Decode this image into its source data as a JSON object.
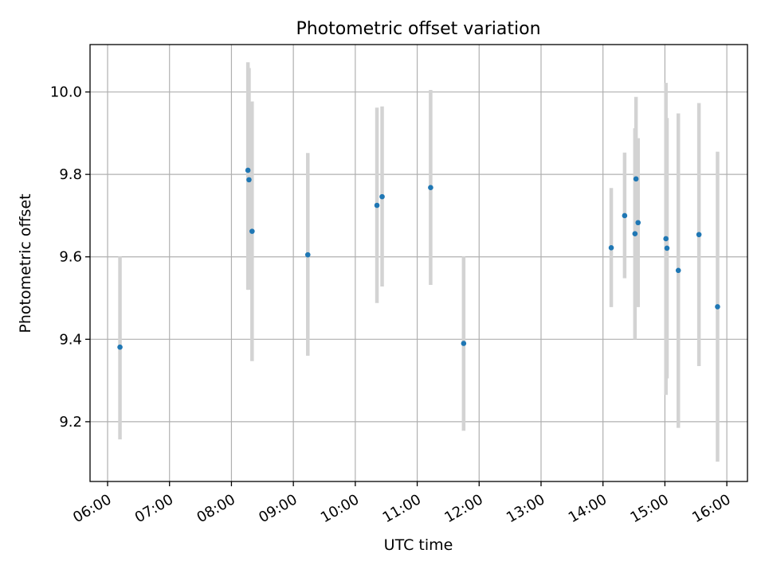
{
  "chart_data": {
    "type": "scatter",
    "title": "Photometric offset variation",
    "xlabel": "UTC time",
    "ylabel": "Photometric offset",
    "xlim": [
      "05:43",
      "16:20"
    ],
    "ylim": [
      9.055,
      10.115
    ],
    "x_ticks": [
      "06:00",
      "07:00",
      "08:00",
      "09:00",
      "10:00",
      "11:00",
      "12:00",
      "13:00",
      "14:00",
      "15:00",
      "16:00"
    ],
    "y_ticks": [
      9.2,
      9.4,
      9.6,
      9.8,
      10.0
    ],
    "y_tick_labels": [
      "9.2",
      "9.4",
      "9.6",
      "9.8",
      "10.0"
    ],
    "grid": true,
    "colors": {
      "points": "#1f77b4",
      "errorbars": "#d3d3d3",
      "grid": "#b0b0b0"
    },
    "series": [
      {
        "points": [
          {
            "time": "06:12",
            "y": 9.381,
            "err_low": 9.157,
            "err_high": 9.601
          },
          {
            "time": "08:16",
            "y": 9.81,
            "err_low": 9.52,
            "err_high": 10.072
          },
          {
            "time": "08:17",
            "y": 9.787,
            "err_low": 9.52,
            "err_high": 10.058
          },
          {
            "time": "08:20",
            "y": 9.662,
            "err_low": 9.347,
            "err_high": 9.977
          },
          {
            "time": "09:14",
            "y": 9.605,
            "err_low": 9.36,
            "err_high": 9.852
          },
          {
            "time": "10:21",
            "y": 9.725,
            "err_low": 9.488,
            "err_high": 9.962
          },
          {
            "time": "10:26",
            "y": 9.746,
            "err_low": 9.528,
            "err_high": 9.965
          },
          {
            "time": "11:13",
            "y": 9.768,
            "err_low": 9.532,
            "err_high": 10.005
          },
          {
            "time": "11:45",
            "y": 9.39,
            "err_low": 9.178,
            "err_high": 9.601
          },
          {
            "time": "14:08",
            "y": 9.622,
            "err_low": 9.478,
            "err_high": 9.767
          },
          {
            "time": "14:21",
            "y": 9.7,
            "err_low": 9.548,
            "err_high": 9.853
          },
          {
            "time": "14:31",
            "y": 9.656,
            "err_low": 9.4,
            "err_high": 9.912
          },
          {
            "time": "14:32",
            "y": 9.789,
            "err_low": 9.59,
            "err_high": 9.988
          },
          {
            "time": "14:34",
            "y": 9.683,
            "err_low": 9.478,
            "err_high": 9.888
          },
          {
            "time": "15:01",
            "y": 9.644,
            "err_low": 9.265,
            "err_high": 10.022
          },
          {
            "time": "15:02",
            "y": 9.621,
            "err_low": 9.305,
            "err_high": 9.937
          },
          {
            "time": "15:13",
            "y": 9.567,
            "err_low": 9.185,
            "err_high": 9.948
          },
          {
            "time": "15:33",
            "y": 9.654,
            "err_low": 9.335,
            "err_high": 9.973
          },
          {
            "time": "15:51",
            "y": 9.479,
            "err_low": 9.103,
            "err_high": 9.855
          }
        ]
      }
    ]
  }
}
